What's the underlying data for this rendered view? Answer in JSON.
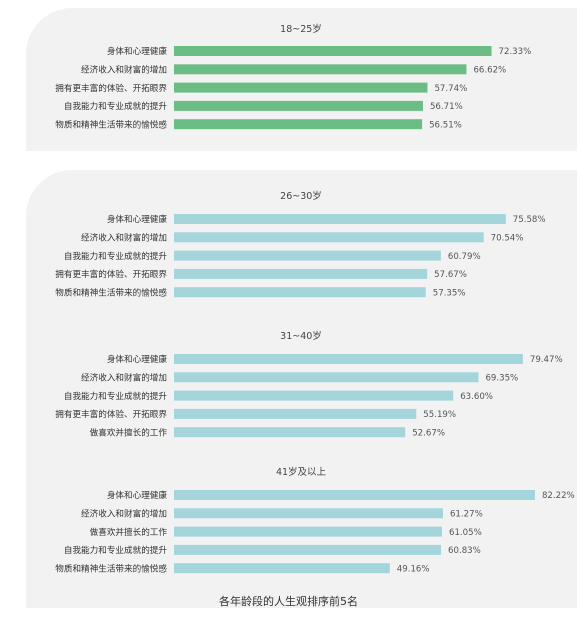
{
  "colors": {
    "green": "#6cbd85",
    "blue": "#a3d5db",
    "panel": "#f2f2f2"
  },
  "caption": "各年龄段的人生观排序前5名",
  "chart_data": [
    {
      "type": "bar",
      "orientation": "horizontal",
      "title": "18~25岁",
      "color": "#6cbd85",
      "categories": [
        "身体和心理健康",
        "经济收入和财富的增加",
        "拥有更丰富的体验、开拓眼界",
        "自我能力和专业成就的提升",
        "物质和精神生活带来的愉悦感"
      ],
      "values": [
        72.33,
        66.62,
        57.74,
        56.71,
        56.51
      ],
      "value_labels": [
        "72.33%",
        "66.62%",
        "57.74%",
        "56.71%",
        "56.51%"
      ]
    },
    {
      "type": "bar",
      "orientation": "horizontal",
      "title": "26~30岁",
      "color": "#a3d5db",
      "categories": [
        "身体和心理健康",
        "经济收入和财富的增加",
        "自我能力和专业成就的提升",
        "拥有更丰富的体验、开拓眼界",
        "物质和精神生活带来的愉悦感"
      ],
      "values": [
        75.58,
        70.54,
        60.79,
        57.67,
        57.35
      ],
      "value_labels": [
        "75.58%",
        "70.54%",
        "60.79%",
        "57.67%",
        "57.35%"
      ]
    },
    {
      "type": "bar",
      "orientation": "horizontal",
      "title": "31~40岁",
      "color": "#a3d5db",
      "categories": [
        "身体和心理健康",
        "经济收入和财富的增加",
        "自我能力和专业成就的提升",
        "拥有更丰富的体验、开拓眼界",
        "做喜欢并擅长的工作"
      ],
      "values": [
        79.47,
        69.35,
        63.6,
        55.19,
        52.67
      ],
      "value_labels": [
        "79.47%",
        "69.35%",
        "63.60%",
        "55.19%",
        "52.67%"
      ]
    },
    {
      "type": "bar",
      "orientation": "horizontal",
      "title": "41岁及以上",
      "color": "#a3d5db",
      "categories": [
        "身体和心理健康",
        "经济收入和财富的增加",
        "做喜欢并擅长的工作",
        "自我能力和专业成就的提升",
        "物质和精神生活带来的愉悦感"
      ],
      "values": [
        82.22,
        61.27,
        61.05,
        60.83,
        49.16
      ],
      "value_labels": [
        "82.22%",
        "61.27%",
        "61.05%",
        "60.83%",
        "49.16%"
      ]
    }
  ]
}
